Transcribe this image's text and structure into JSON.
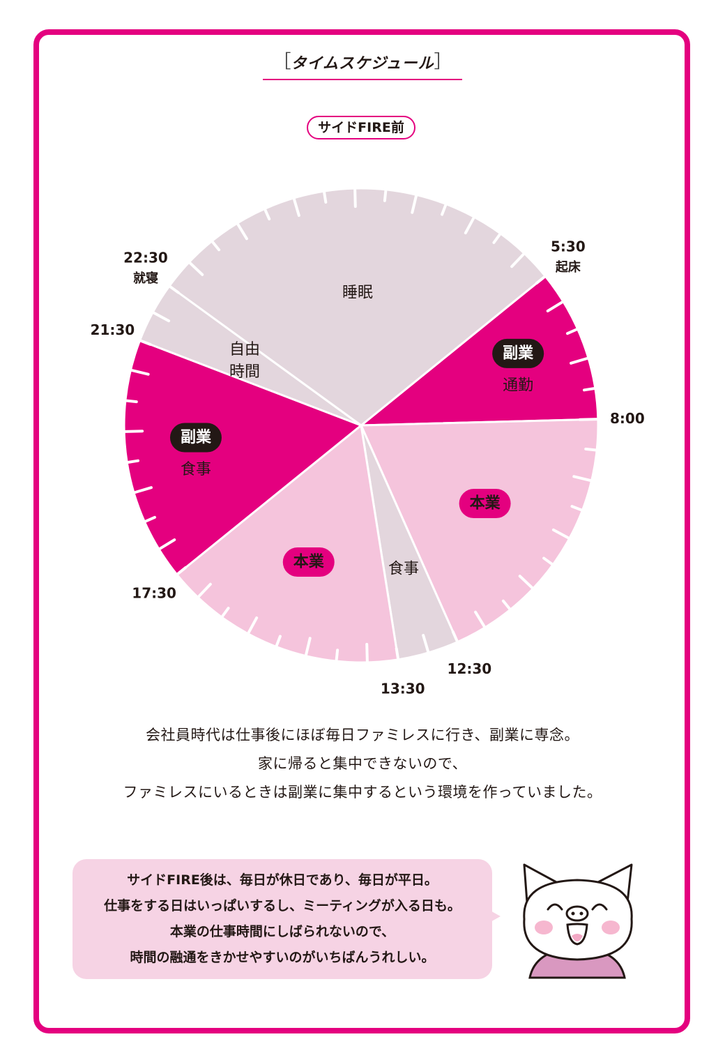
{
  "header": {
    "title": "タイムスケジュール"
  },
  "diagram": {
    "title": "サイドFIRE前",
    "colors": {
      "rest": "#e3d6dd",
      "side": "#e4007f",
      "main": "#f5c4dc",
      "frame": "#e4007f",
      "tag_dark": "#231815"
    },
    "segments": [
      {
        "start": "5:30",
        "end": "8:00",
        "label": "通勤",
        "tag": "副業",
        "kind": "side"
      },
      {
        "start": "8:00",
        "end": "12:30",
        "label": "",
        "tag": "本業",
        "kind": "main"
      },
      {
        "start": "12:30",
        "end": "13:30",
        "label": "食事",
        "tag": "",
        "kind": "rest"
      },
      {
        "start": "13:30",
        "end": "17:30",
        "label": "",
        "tag": "本業",
        "kind": "main"
      },
      {
        "start": "17:30",
        "end": "21:30",
        "label": "食事",
        "tag": "副業",
        "kind": "side"
      },
      {
        "start": "21:30",
        "end": "22:30",
        "label": "自由時間",
        "tag": "",
        "kind": "rest"
      },
      {
        "start": "22:30",
        "end": "5:30",
        "label": "睡眠",
        "tag": "",
        "kind": "rest"
      }
    ],
    "time_labels": [
      {
        "time": "22:30",
        "note": "就寝"
      },
      {
        "time": "21:30",
        "note": ""
      },
      {
        "time": "5:30",
        "note": "起床"
      },
      {
        "time": "17:30",
        "note": ""
      },
      {
        "time": "8:00",
        "note": ""
      },
      {
        "time": "13:30",
        "note": ""
      },
      {
        "time": "12:30",
        "note": ""
      }
    ],
    "free_time_lines": [
      "自由",
      "時間"
    ]
  },
  "caption": [
    "会社員時代は仕事後にほぼ毎日ファミレスに行き、副業に専念。",
    "家に帰ると集中できないので、",
    "ファミレスにいるときは副業に集中するという環境を作っていました。"
  ],
  "bubble": [
    "サイドFIRE後は、毎日が休日であり、毎日が平日。",
    "仕事をする日はいっぱいするし、ミーティングが入る日も。",
    "本業の仕事時間にしばられないので、",
    "時間の融通をきかせやすいのがいちばんうれしい。"
  ],
  "mascot": {
    "icon": "pig-character-icon"
  }
}
